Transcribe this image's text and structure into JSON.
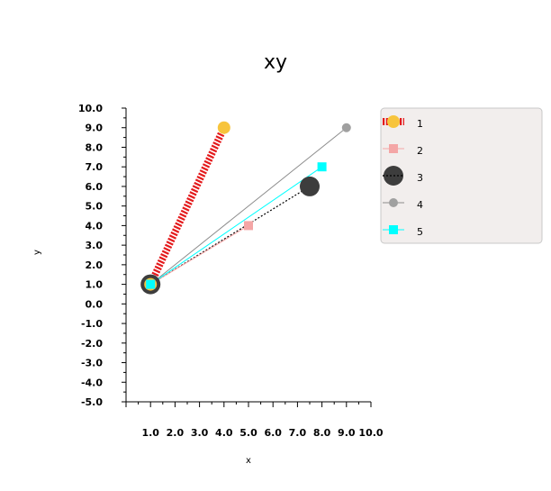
{
  "chart_data": {
    "type": "line",
    "title": "xy",
    "xlabel": "x",
    "ylabel": "y",
    "xlim": [
      0.0,
      10.0
    ],
    "ylim": [
      -5.0,
      10.0
    ],
    "xticks": [
      "1.0",
      "2.0",
      "3.0",
      "4.0",
      "5.0",
      "6.0",
      "7.0",
      "8.0",
      "9.0",
      "10.0"
    ],
    "yticks": [
      "-5.0",
      "-4.0",
      "-3.0",
      "-2.0",
      "-1.0",
      "0.0",
      "1.0",
      "2.0",
      "3.0",
      "4.0",
      "5.0",
      "6.0",
      "7.0",
      "8.0",
      "9.0",
      "10.0"
    ],
    "grid": false,
    "legend_position": "right",
    "series": [
      {
        "name": "1",
        "x": [
          1.0,
          4.0
        ],
        "y": [
          1.0,
          9.0
        ],
        "color": "#e41a1c",
        "marker_color": "#f7c43c",
        "style": "thick-dashed",
        "marker": "circle"
      },
      {
        "name": "2",
        "x": [
          1.0,
          5.0
        ],
        "y": [
          1.0,
          4.0
        ],
        "color": "#f4a6a6",
        "marker_color": "#f4a6a6",
        "style": "thin",
        "marker": "square"
      },
      {
        "name": "3",
        "x": [
          1.0,
          7.5
        ],
        "y": [
          1.0,
          6.0
        ],
        "color": "#000000",
        "marker_color": "#3d3d3d",
        "style": "dotted",
        "marker": "big-circle"
      },
      {
        "name": "4",
        "x": [
          1.0,
          9.0
        ],
        "y": [
          1.0,
          9.0
        ],
        "color": "#8c8c8c",
        "marker_color": "#a0a0a0",
        "style": "thin",
        "marker": "circle"
      },
      {
        "name": "5",
        "x": [
          1.0,
          8.0
        ],
        "y": [
          1.0,
          7.0
        ],
        "color": "#00ffff",
        "marker_color": "#00ffff",
        "style": "thin",
        "marker": "square"
      }
    ]
  }
}
